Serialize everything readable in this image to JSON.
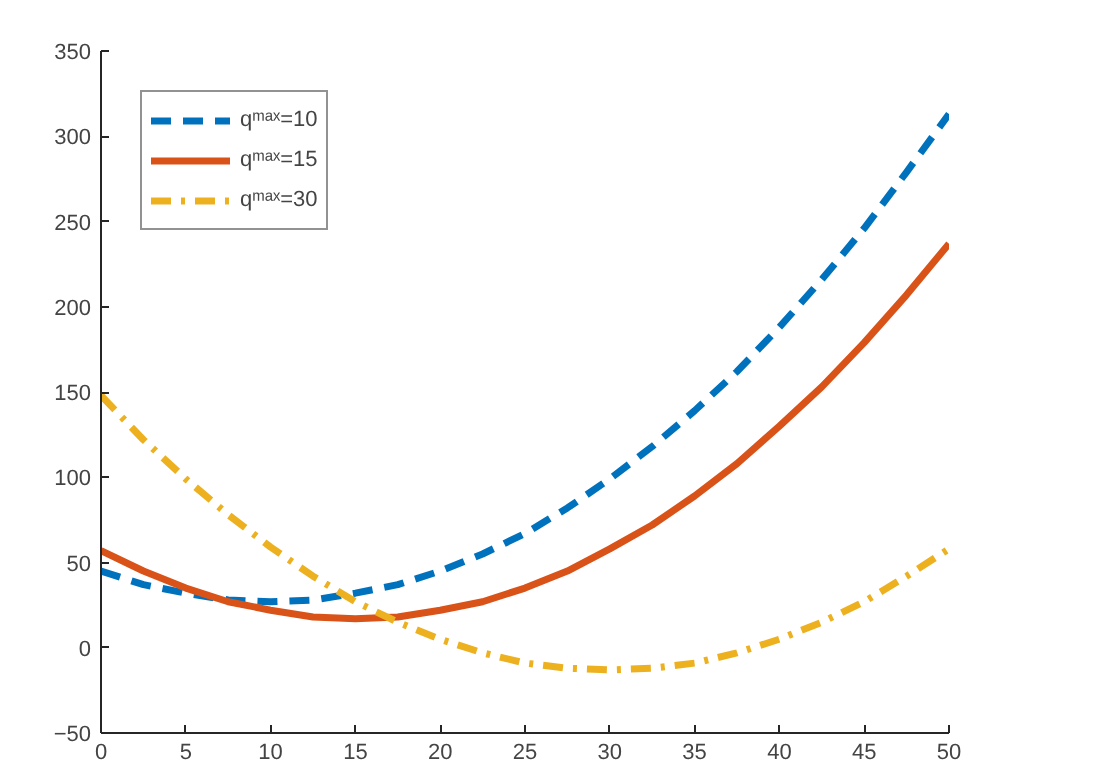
{
  "chart_data": {
    "type": "line",
    "x": [
      0,
      2.5,
      5,
      7.5,
      10,
      12.5,
      15,
      17.5,
      20,
      22.5,
      25,
      27.5,
      30,
      32.5,
      35,
      37.5,
      40,
      42.5,
      45,
      47.5,
      50
    ],
    "series": [
      {
        "name": "qᵐᵃˣ=10",
        "color": "#0072bd",
        "line_style": "dashed",
        "values": [
          45,
          37,
          32,
          28,
          27,
          28,
          32,
          37,
          45,
          55,
          67,
          82,
          99,
          118,
          139,
          162,
          188,
          216,
          246,
          279,
          313
        ]
      },
      {
        "name": "qᵐᵃˣ=15",
        "color": "#d95319",
        "line_style": "solid",
        "values": [
          57,
          45,
          35,
          27,
          22,
          18,
          17,
          18,
          22,
          27,
          35,
          45,
          58,
          72,
          89,
          108,
          130,
          153,
          179,
          207,
          237
        ]
      },
      {
        "name": "qᵐᵃˣ=30",
        "color": "#edb120",
        "line_style": "dashdot",
        "values": [
          148,
          122,
          99,
          78,
          59,
          42,
          27,
          15,
          5,
          -3,
          -9,
          -12,
          -13,
          -12,
          -9,
          -3,
          5,
          15,
          27,
          42,
          58
        ]
      }
    ],
    "xlim": [
      0,
      50
    ],
    "xticks": [
      0,
      5,
      10,
      15,
      20,
      25,
      30,
      35,
      40,
      45,
      50
    ],
    "ylim": [
      -50,
      350
    ],
    "yticks": [
      -50,
      0,
      50,
      100,
      150,
      200,
      250,
      300,
      350
    ],
    "grid": false,
    "legend": "top left"
  }
}
